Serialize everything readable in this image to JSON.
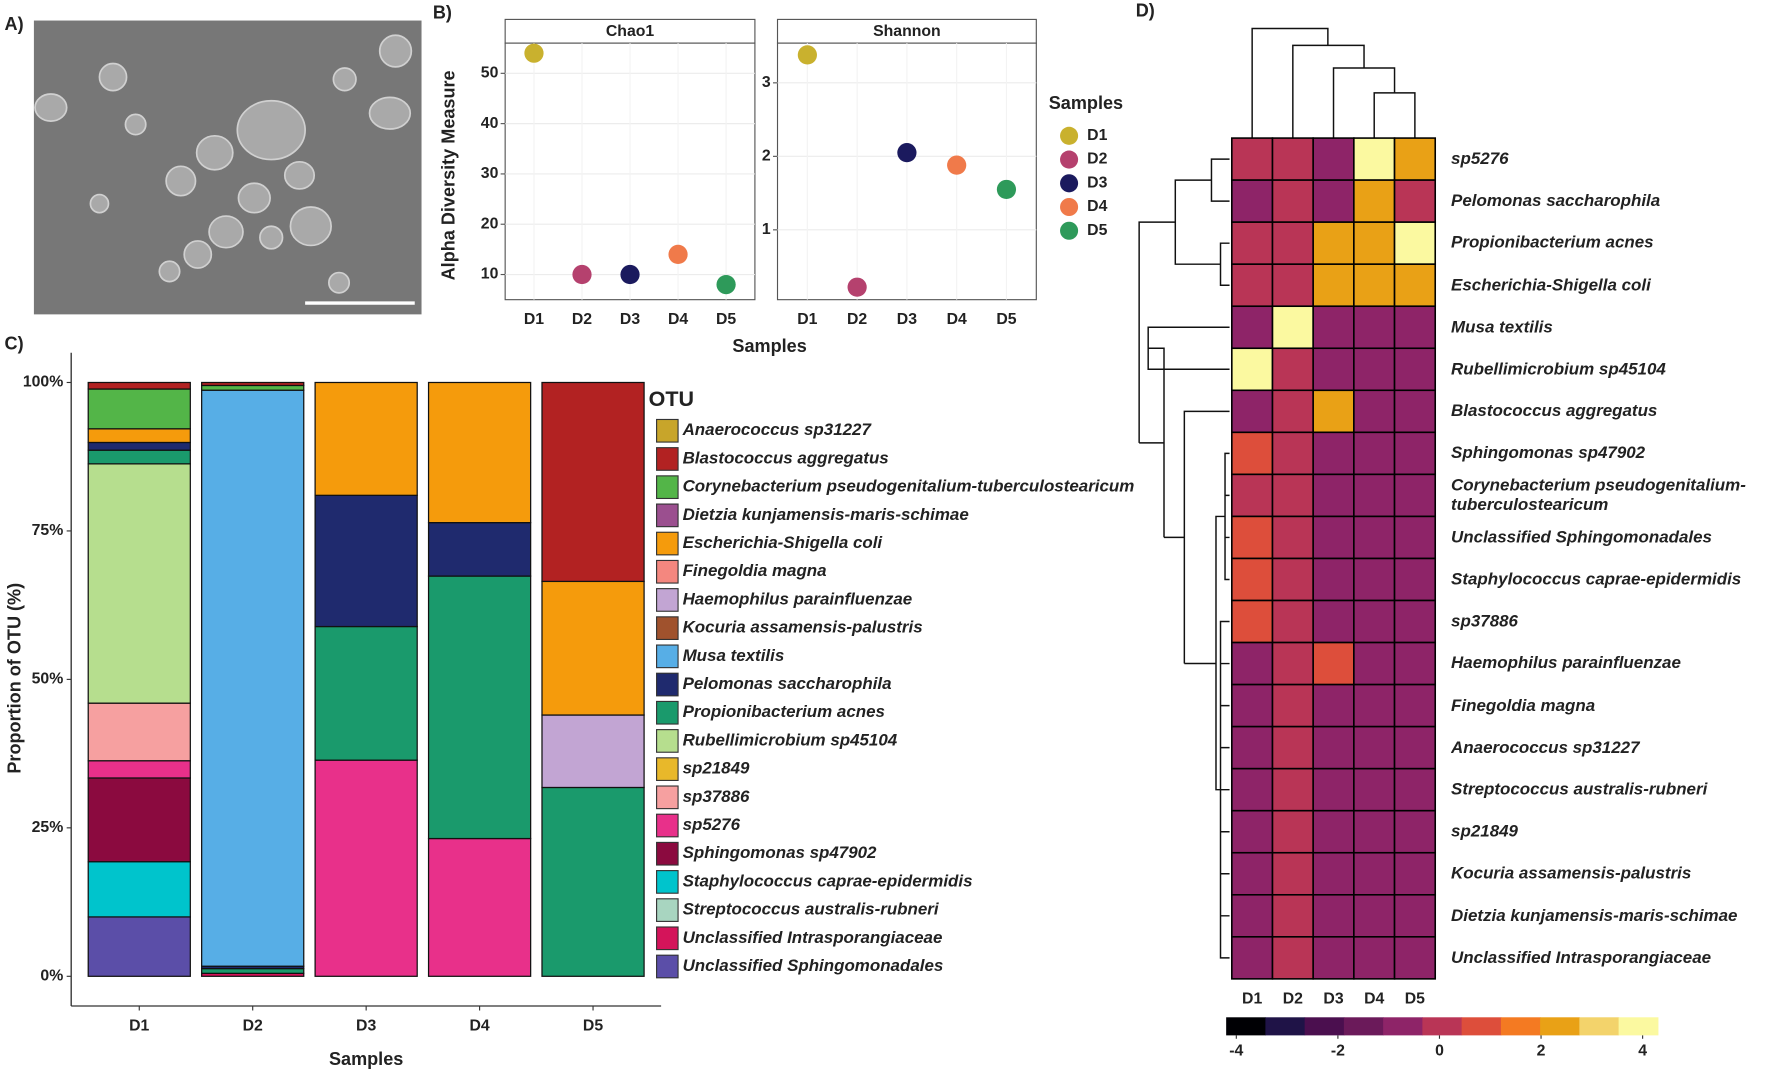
{
  "panels": [
    "A)",
    "B)",
    "C)",
    "D)"
  ],
  "chart_data": [
    {
      "type": "scatter",
      "title": "Chao1",
      "xlabel": "Samples",
      "ylabel": "Alpha Diversity Measure",
      "legend_title": "Samples",
      "categories": [
        "D1",
        "D2",
        "D3",
        "D4",
        "D5"
      ],
      "values": [
        54,
        10,
        10,
        14,
        8
      ],
      "colors": [
        "#c9b12e",
        "#b5416e",
        "#1b1a5e",
        "#f07a4a",
        "#2e9a5a"
      ],
      "ylim": [
        5,
        56
      ],
      "yticks": [
        10,
        20,
        30,
        40,
        50
      ],
      "grid": true
    },
    {
      "type": "scatter",
      "title": "Shannon",
      "categories": [
        "D1",
        "D2",
        "D3",
        "D4",
        "D5"
      ],
      "values": [
        3.38,
        0.22,
        2.05,
        1.88,
        1.55
      ],
      "colors": [
        "#c9b12e",
        "#b5416e",
        "#1b1a5e",
        "#f07a4a",
        "#2e9a5a"
      ],
      "ylim": [
        0.05,
        3.54
      ],
      "yticks": [
        1,
        2,
        3
      ],
      "grid": true
    },
    {
      "type": "stacked_bar",
      "xlabel": "Samples",
      "ylabel": "Proportion of OTU (%)",
      "legend_title": "OTU",
      "categories": [
        "D1",
        "D2",
        "D3",
        "D4",
        "D5"
      ],
      "series": [
        {
          "name": "Anaerococcus sp31227",
          "color": "#c8a52a",
          "values": [
            0,
            0,
            0,
            0,
            0
          ]
        },
        {
          "name": "Blastococcus aggregatus",
          "color": "#b22222",
          "values": [
            1.1,
            0.5,
            0,
            0,
            33.5
          ]
        },
        {
          "name": "Corynebacterium pseudogenitalium-tuberculostearicum",
          "color": "#53b548",
          "values": [
            6.7,
            0.8,
            0,
            0,
            0
          ]
        },
        {
          "name": "Dietzia kunjamensis-maris-schimae",
          "color": "#9b4f8f",
          "values": [
            0,
            0,
            0,
            0,
            0
          ]
        },
        {
          "name": "Escherichia-Shigella coli",
          "color": "#f59b0c",
          "values": [
            2.3,
            0,
            19.0,
            23.6,
            22.5
          ]
        },
        {
          "name": "Finegoldia magna",
          "color": "#f4877f",
          "values": [
            0,
            0,
            0,
            0,
            0
          ]
        },
        {
          "name": "Haemophilus parainfluenzae",
          "color": "#c2a5d3",
          "values": [
            0,
            0,
            0,
            0,
            12.2
          ]
        },
        {
          "name": "Kocuria assamensis-palustris",
          "color": "#a0522d",
          "values": [
            0,
            0,
            0,
            0,
            0
          ]
        },
        {
          "name": "Musa textilis",
          "color": "#57aee6",
          "values": [
            0,
            97.0,
            0,
            0,
            0
          ]
        },
        {
          "name": "Pelomonas saccharophila",
          "color": "#1f2a6e",
          "values": [
            1.3,
            0.4,
            22.1,
            9.0,
            0
          ]
        },
        {
          "name": "Propionibacterium acnes",
          "color": "#1a9a6c",
          "values": [
            2.3,
            0.8,
            22.5,
            44.2,
            31.8
          ]
        },
        {
          "name": "Rubellimicrobium sp45104",
          "color": "#b6de8e",
          "values": [
            40.3,
            0,
            0,
            0,
            0
          ]
        },
        {
          "name": "sp21849",
          "color": "#e8b82a",
          "values": [
            0,
            0,
            0,
            0,
            0
          ]
        },
        {
          "name": "sp37886",
          "color": "#f6a0a0",
          "values": [
            9.7,
            0,
            0,
            0,
            0
          ]
        },
        {
          "name": "sp5276",
          "color": "#e8308a",
          "values": [
            2.9,
            0,
            36.4,
            23.2,
            0
          ]
        },
        {
          "name": "Sphingomonas sp47902",
          "color": "#8b0a3f",
          "values": [
            14.1,
            0,
            0,
            0,
            0
          ]
        },
        {
          "name": "Staphylococcus caprae-epidermidis",
          "color": "#00c4cc",
          "values": [
            9.3,
            0,
            0,
            0,
            0
          ]
        },
        {
          "name": "Streptococcus australis-rubneri",
          "color": "#a8d5c0",
          "values": [
            0,
            0,
            0,
            0,
            0
          ]
        },
        {
          "name": "Unclassified Intrasporangiaceae",
          "color": "#d4145a",
          "values": [
            0,
            0.5,
            0,
            0,
            0
          ]
        },
        {
          "name": "Unclassified Sphingomonadales",
          "color": "#5b4ea8",
          "values": [
            10,
            0,
            0,
            0,
            0
          ]
        }
      ],
      "ylim": [
        -5,
        105
      ],
      "yticks": [
        {
          "value": 0,
          "label": "0%"
        },
        {
          "value": 25,
          "label": "25%"
        },
        {
          "value": 50,
          "label": "50%"
        },
        {
          "value": 75,
          "label": "75%"
        },
        {
          "value": 100,
          "label": "100%"
        }
      ]
    },
    {
      "type": "heatmap",
      "columns": [
        "D1",
        "D2",
        "D3",
        "D4",
        "D5"
      ],
      "rows": [
        "sp5276",
        "Pelomonas saccharophila",
        "Propionibacterium acnes",
        "Escherichia-Shigella coli",
        "Musa textilis",
        "Rubellimicrobium sp45104",
        "Blastococcus aggregatus",
        "Sphingomonas sp47902",
        "Corynebacterium pseudogenitalium-tuberculostearicum",
        "Unclassified Sphingomonadales",
        "Staphylococcus caprae-epidermidis",
        "sp37886",
        "Haemophilus parainfluenzae",
        "Finegoldia magna",
        "Anaerococcus sp31227",
        "Streptococcus australis-rubneri",
        "sp21849",
        "Kocuria assamensis-palustris",
        "Dietzia kunjamensis-maris-schimae",
        "Unclassified Intrasporangiaceae"
      ],
      "values": [
        [
          0,
          0,
          -1,
          3.7,
          2
        ],
        [
          -1,
          0,
          -1,
          2,
          0
        ],
        [
          0.2,
          0,
          2.6,
          2,
          3.8
        ],
        [
          0,
          0,
          2,
          2,
          2
        ],
        [
          -1,
          4.2,
          -1,
          -1,
          -1
        ],
        [
          4.2,
          0,
          -1,
          -1,
          -1
        ],
        [
          -1,
          0,
          2.6,
          -1,
          -1
        ],
        [
          1,
          0,
          -1,
          -1,
          -1
        ],
        [
          0,
          0,
          -1,
          -1,
          -1
        ],
        [
          1,
          0,
          -1,
          -1,
          -1
        ],
        [
          1,
          0,
          -1,
          -1,
          -1
        ],
        [
          1,
          0,
          -1,
          -1,
          -1
        ],
        [
          -1,
          0,
          1,
          -1,
          -1
        ],
        [
          -1,
          0,
          -1,
          -1,
          -1
        ],
        [
          -1,
          0,
          -1,
          -1,
          -1
        ],
        [
          -1,
          0,
          -1,
          -1,
          -1
        ],
        [
          -1,
          0,
          -1,
          -1,
          -1
        ],
        [
          -1,
          0,
          -1,
          -1,
          -1
        ],
        [
          -1,
          0,
          -1,
          -1,
          -1
        ],
        [
          -1,
          0,
          -1,
          -1,
          -1
        ]
      ],
      "colorbar": {
        "lim": [
          -4.2,
          4.3
        ],
        "ticks": [
          -4,
          -2,
          0,
          2,
          4
        ],
        "colors": [
          "#000004",
          "#1f1347",
          "#4b0f4f",
          "#6b1a5a",
          "#8e2468",
          "#b93556",
          "#dd4e3b",
          "#f47a22",
          "#e9a116",
          "#f3d36b",
          "#fbf9a0"
        ]
      }
    }
  ]
}
